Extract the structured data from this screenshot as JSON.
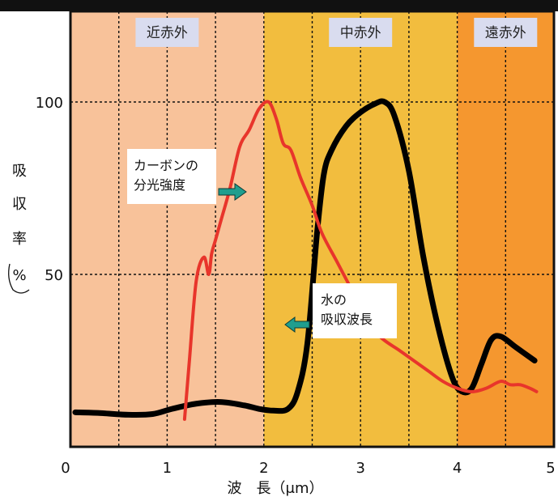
{
  "chart_data": {
    "type": "line",
    "xlim": [
      0,
      5
    ],
    "ylim": [
      0,
      100
    ],
    "x_ticks": [
      "0",
      "1",
      "2",
      "3",
      "4",
      "5"
    ],
    "y_ticks": [
      "100",
      "50"
    ],
    "xlabel": "波　長（μm）",
    "ylabel_chars": [
      "吸",
      "収",
      "率",
      "%"
    ],
    "grid": true,
    "regions": [
      {
        "label": "近赤外",
        "from": 0,
        "to": 2,
        "color": "#f8c29a"
      },
      {
        "label": "中赤外",
        "from": 2,
        "to": 4,
        "color": "#f2bd3e"
      },
      {
        "label": "遠赤外",
        "from": 4,
        "to": 5,
        "color": "#f5972f"
      }
    ],
    "series": [
      {
        "name": "水の吸収波長",
        "color": "#000000",
        "x": [
          0.05,
          0.3,
          0.6,
          0.85,
          1.05,
          1.3,
          1.55,
          1.8,
          1.95,
          2.1,
          2.25,
          2.35,
          2.45,
          2.55,
          2.62,
          2.7,
          2.85,
          3.0,
          3.15,
          3.25,
          3.35,
          3.5,
          3.65,
          3.8,
          3.95,
          4.05,
          4.15,
          4.25,
          4.35,
          4.45,
          4.6,
          4.8
        ],
        "values": [
          10,
          9.8,
          9.3,
          9.5,
          11,
          12.5,
          13,
          12,
          11,
          10.5,
          11,
          16,
          30,
          62,
          79,
          86,
          93,
          97,
          99.5,
          100,
          96,
          80,
          55,
          35,
          20,
          16,
          17,
          24,
          31,
          32,
          29,
          25
        ]
      },
      {
        "name": "カーボンの分光強度",
        "color": "#e8352b",
        "x": [
          1.18,
          1.23,
          1.3,
          1.38,
          1.43,
          1.46,
          1.5,
          1.56,
          1.65,
          1.75,
          1.85,
          1.95,
          2.05,
          2.13,
          2.2,
          2.28,
          2.38,
          2.5,
          2.6,
          2.75,
          2.9,
          3.05,
          3.2,
          3.4,
          3.55,
          3.7,
          3.85,
          4.0,
          4.15,
          4.3,
          4.45,
          4.55,
          4.65,
          4.75,
          4.82
        ],
        "values": [
          8,
          25,
          48,
          55,
          50,
          56,
          60,
          66,
          75,
          87,
          92,
          98,
          100,
          95,
          88,
          86,
          78,
          70,
          62,
          54,
          46,
          38,
          32,
          28,
          25,
          22,
          19,
          17,
          16,
          17,
          19,
          18,
          18,
          17,
          16
        ]
      }
    ],
    "annotations": [
      {
        "lines": [
          "カーボンの",
          "分光強度"
        ],
        "target": "カーボンの分光強度"
      },
      {
        "lines": [
          "水の",
          "吸収波長"
        ],
        "target": "水の吸収波長"
      }
    ]
  }
}
